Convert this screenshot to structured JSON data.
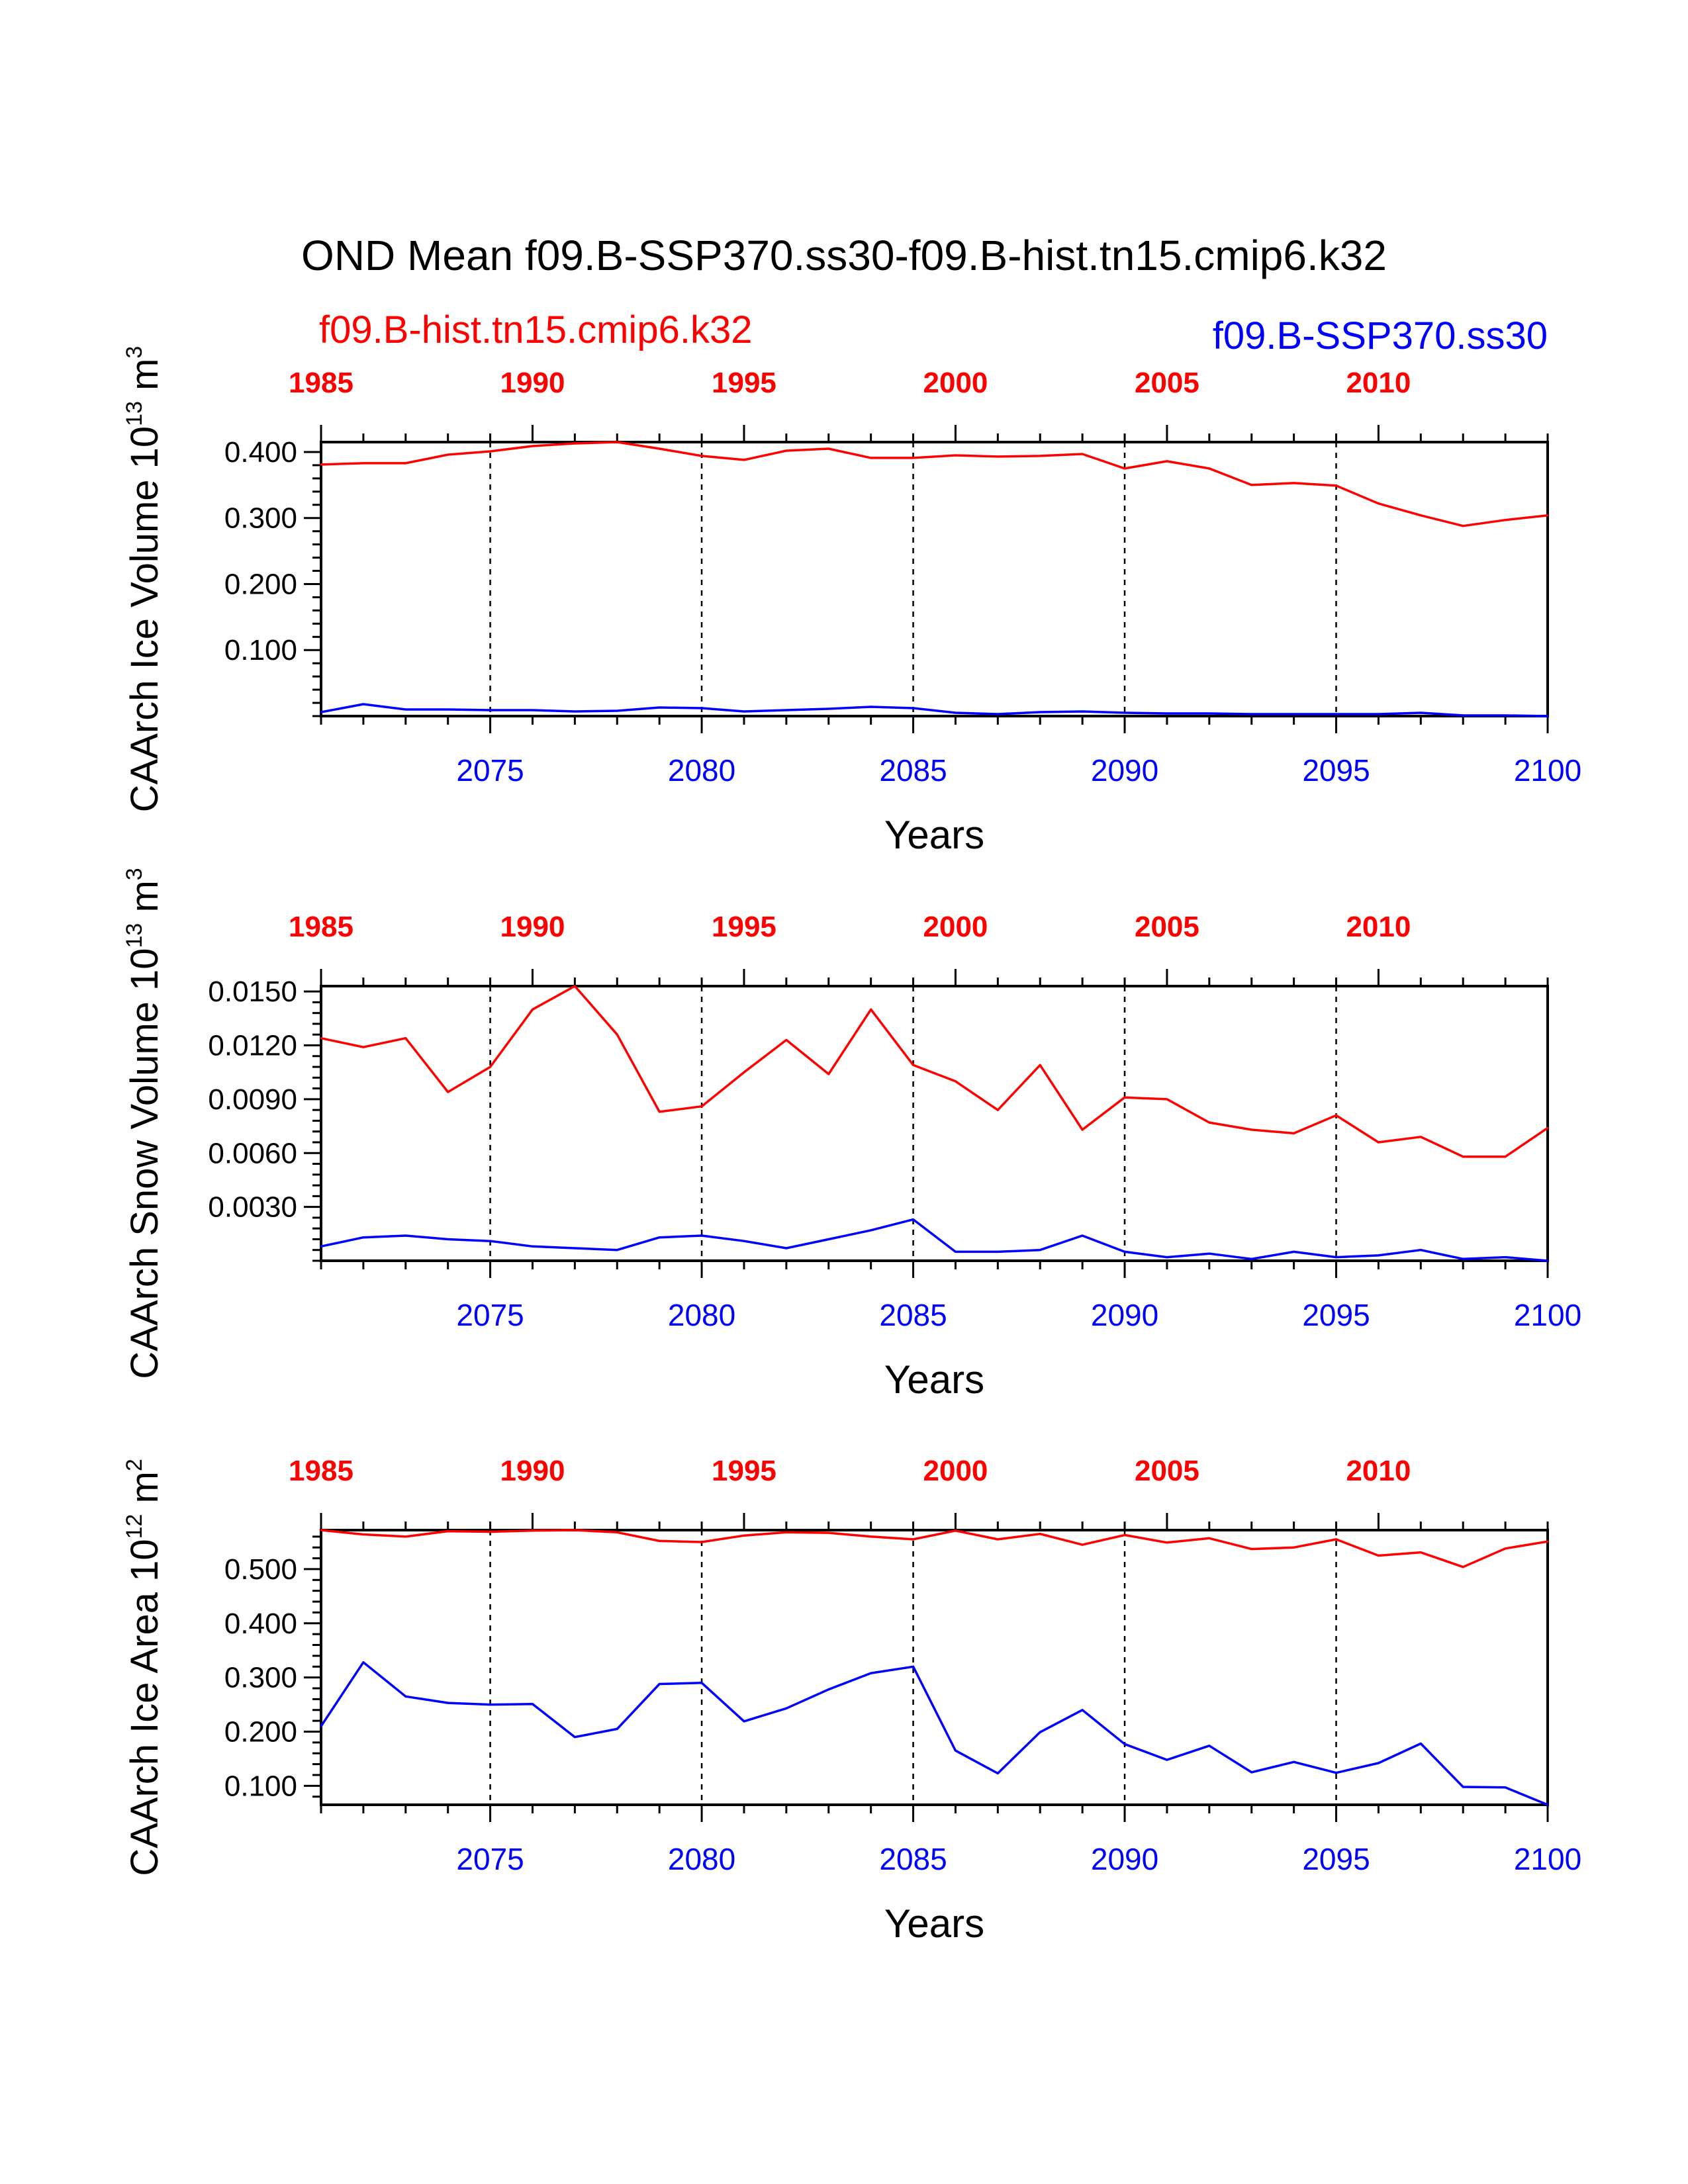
{
  "title": "OND Mean f09.B-SSP370.ss30-f09.B-hist.tn15.cmip6.k32",
  "legend": {
    "hist": "f09.B-hist.tn15.cmip6.k32",
    "ssp": "f09.B-SSP370.ss30"
  },
  "colors": {
    "hist": "#ff0000",
    "ssp": "#0000ff",
    "axis": "#000000"
  },
  "chart_data": [
    {
      "type": "line",
      "ylabel_main": "CAArch Ice Volume 10",
      "ylabel_exp": "13",
      "ylabel_unit": " m",
      "ylabel_unit_exp": "3",
      "xlabel": "Years",
      "ylim": [
        0.0,
        0.415
      ],
      "yticks": [
        0.1,
        0.2,
        0.3,
        0.4
      ],
      "ytick_labels": [
        "0.100",
        "0.200",
        "0.300",
        "0.400"
      ],
      "x_bottom": {
        "lim": [
          2071,
          2100
        ],
        "ticks": [
          2075,
          2080,
          2085,
          2090,
          2095,
          2100
        ]
      },
      "x_top": {
        "lim": [
          1985,
          2014
        ],
        "ticks": [
          1985,
          1990,
          1995,
          2000,
          2005,
          2010
        ]
      },
      "grid": "dashed vertical lines at 2075, 2080, 2085, 2090, 2095",
      "series": [
        {
          "key": "hist",
          "x": [
            1985,
            1986,
            1987,
            1988,
            1989,
            1990,
            1991,
            1992,
            1993,
            1994,
            1995,
            1996,
            1997,
            1998,
            1999,
            2000,
            2001,
            2002,
            2003,
            2004,
            2005,
            2006,
            2007,
            2008,
            2009,
            2010,
            2011,
            2012,
            2013,
            2014
          ],
          "values": [
            0.381,
            0.383,
            0.383,
            0.396,
            0.401,
            0.409,
            0.413,
            0.415,
            0.405,
            0.394,
            0.388,
            0.402,
            0.405,
            0.391,
            0.391,
            0.395,
            0.393,
            0.394,
            0.397,
            0.375,
            0.386,
            0.375,
            0.35,
            0.353,
            0.349,
            0.322,
            0.304,
            0.288,
            0.297,
            0.304
          ]
        },
        {
          "key": "ssp",
          "x": [
            2071,
            2072,
            2073,
            2074,
            2075,
            2076,
            2077,
            2078,
            2079,
            2080,
            2081,
            2082,
            2083,
            2084,
            2085,
            2086,
            2087,
            2088,
            2089,
            2090,
            2091,
            2092,
            2093,
            2094,
            2095,
            2096,
            2097,
            2098,
            2099,
            2100
          ],
          "values": [
            0.006,
            0.018,
            0.01,
            0.01,
            0.009,
            0.009,
            0.007,
            0.008,
            0.013,
            0.012,
            0.007,
            0.009,
            0.011,
            0.014,
            0.012,
            0.005,
            0.003,
            0.006,
            0.007,
            0.005,
            0.004,
            0.004,
            0.003,
            0.003,
            0.003,
            0.003,
            0.005,
            0.001,
            0.001,
            0.0
          ]
        }
      ]
    },
    {
      "type": "line",
      "ylabel_main": "CAArch Snow Volume 10",
      "ylabel_exp": "13",
      "ylabel_unit": " m",
      "ylabel_unit_exp": "3",
      "xlabel": "Years",
      "ylim": [
        0.0,
        0.0153
      ],
      "yticks": [
        0.003,
        0.006,
        0.009,
        0.012,
        0.015
      ],
      "ytick_labels": [
        "0.0030",
        "0.0060",
        "0.0090",
        "0.0120",
        "0.0150"
      ],
      "x_bottom": {
        "lim": [
          2071,
          2100
        ],
        "ticks": [
          2075,
          2080,
          2085,
          2090,
          2095,
          2100
        ]
      },
      "x_top": {
        "lim": [
          1985,
          2014
        ],
        "ticks": [
          1985,
          1990,
          1995,
          2000,
          2005,
          2010
        ]
      },
      "grid": "dashed vertical lines at 2075, 2080, 2085, 2090, 2095",
      "series": [
        {
          "key": "hist",
          "x": [
            1985,
            1986,
            1987,
            1988,
            1989,
            1990,
            1991,
            1992,
            1993,
            1994,
            1995,
            1996,
            1997,
            1998,
            1999,
            2000,
            2001,
            2002,
            2003,
            2004,
            2005,
            2006,
            2007,
            2008,
            2009,
            2010,
            2011,
            2012,
            2013,
            2014
          ],
          "values": [
            0.0124,
            0.0119,
            0.0124,
            0.0094,
            0.0108,
            0.014,
            0.0153,
            0.0126,
            0.0083,
            0.0086,
            0.0105,
            0.0123,
            0.0104,
            0.014,
            0.0109,
            0.01,
            0.0084,
            0.0109,
            0.0073,
            0.0091,
            0.009,
            0.0077,
            0.0073,
            0.0071,
            0.0081,
            0.0066,
            0.0069,
            0.0058,
            0.0058,
            0.0074
          ]
        },
        {
          "key": "ssp",
          "x": [
            2071,
            2072,
            2073,
            2074,
            2075,
            2076,
            2077,
            2078,
            2079,
            2080,
            2081,
            2082,
            2083,
            2084,
            2085,
            2086,
            2087,
            2088,
            2089,
            2090,
            2091,
            2092,
            2093,
            2094,
            2095,
            2096,
            2097,
            2098,
            2099,
            2100
          ],
          "values": [
            0.0008,
            0.0013,
            0.0014,
            0.0012,
            0.0011,
            0.0008,
            0.0007,
            0.0006,
            0.0013,
            0.0014,
            0.0011,
            0.0007,
            0.0012,
            0.0017,
            0.0023,
            0.0005,
            0.0005,
            0.0006,
            0.0014,
            0.0005,
            0.0002,
            0.0004,
            0.0001,
            0.0005,
            0.0002,
            0.0003,
            0.0006,
            0.0001,
            0.0002,
            0.0
          ]
        }
      ]
    },
    {
      "type": "line",
      "ylabel_main": "CAArch Ice Area 10",
      "ylabel_exp": "12",
      "ylabel_unit": " m",
      "ylabel_unit_exp": "2",
      "xlabel": "Years",
      "ylim": [
        0.065,
        0.572
      ],
      "yticks": [
        0.1,
        0.2,
        0.3,
        0.4,
        0.5
      ],
      "ytick_labels": [
        "0.100",
        "0.200",
        "0.300",
        "0.400",
        "0.500"
      ],
      "x_bottom": {
        "lim": [
          2071,
          2100
        ],
        "ticks": [
          2075,
          2080,
          2085,
          2090,
          2095,
          2100
        ]
      },
      "x_top": {
        "lim": [
          1985,
          2014
        ],
        "ticks": [
          1985,
          1990,
          1995,
          2000,
          2005,
          2010
        ]
      },
      "grid": "dashed vertical lines at 2075, 2080, 2085, 2090, 2095",
      "series": [
        {
          "key": "hist",
          "x": [
            1985,
            1986,
            1987,
            1988,
            1989,
            1990,
            1991,
            1992,
            1993,
            1994,
            1995,
            1996,
            1997,
            1998,
            1999,
            2000,
            2001,
            2002,
            2003,
            2004,
            2005,
            2006,
            2007,
            2008,
            2009,
            2010,
            2011,
            2012,
            2013,
            2014
          ],
          "values": [
            0.572,
            0.564,
            0.56,
            0.57,
            0.569,
            0.571,
            0.572,
            0.568,
            0.552,
            0.55,
            0.562,
            0.568,
            0.567,
            0.56,
            0.555,
            0.571,
            0.555,
            0.565,
            0.545,
            0.563,
            0.549,
            0.557,
            0.537,
            0.54,
            0.555,
            0.525,
            0.531,
            0.504,
            0.538,
            0.551
          ]
        },
        {
          "key": "ssp",
          "x": [
            2071,
            2072,
            2073,
            2074,
            2075,
            2076,
            2077,
            2078,
            2079,
            2080,
            2081,
            2082,
            2083,
            2084,
            2085,
            2086,
            2087,
            2088,
            2089,
            2090,
            2091,
            2092,
            2093,
            2094,
            2095,
            2096,
            2097,
            2098,
            2099,
            2100
          ],
          "values": [
            0.21,
            0.328,
            0.265,
            0.253,
            0.25,
            0.251,
            0.19,
            0.205,
            0.288,
            0.29,
            0.219,
            0.243,
            0.278,
            0.308,
            0.32,
            0.165,
            0.123,
            0.199,
            0.24,
            0.177,
            0.148,
            0.174,
            0.125,
            0.144,
            0.124,
            0.142,
            0.178,
            0.098,
            0.097,
            0.065
          ]
        }
      ]
    }
  ]
}
